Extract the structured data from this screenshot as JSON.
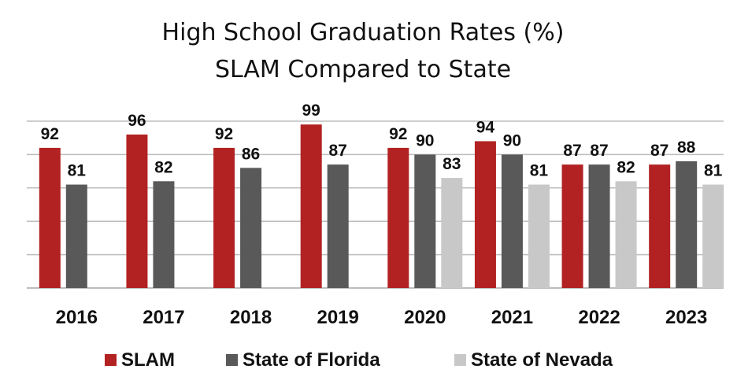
{
  "chart_data": {
    "type": "bar",
    "title": "High School Graduation Rates (%)",
    "subtitle": "SLAM Compared to State",
    "categories": [
      "2016",
      "2017",
      "2018",
      "2019",
      "2020",
      "2021",
      "2022",
      "2023"
    ],
    "series": [
      {
        "name": "SLAM",
        "color": "#b22222",
        "values": [
          92,
          96,
          92,
          99,
          92,
          94,
          87,
          87
        ]
      },
      {
        "name": "State of Florida",
        "color": "#595959",
        "values": [
          81,
          82,
          86,
          87,
          90,
          90,
          87,
          88
        ]
      },
      {
        "name": "State of Nevada",
        "color": "#c8c8c8",
        "values": [
          null,
          null,
          null,
          null,
          83,
          81,
          82,
          81
        ]
      }
    ],
    "ylim": [
      50,
      100
    ],
    "grid": true,
    "legend": "bottom",
    "show_y_ticks": false
  }
}
